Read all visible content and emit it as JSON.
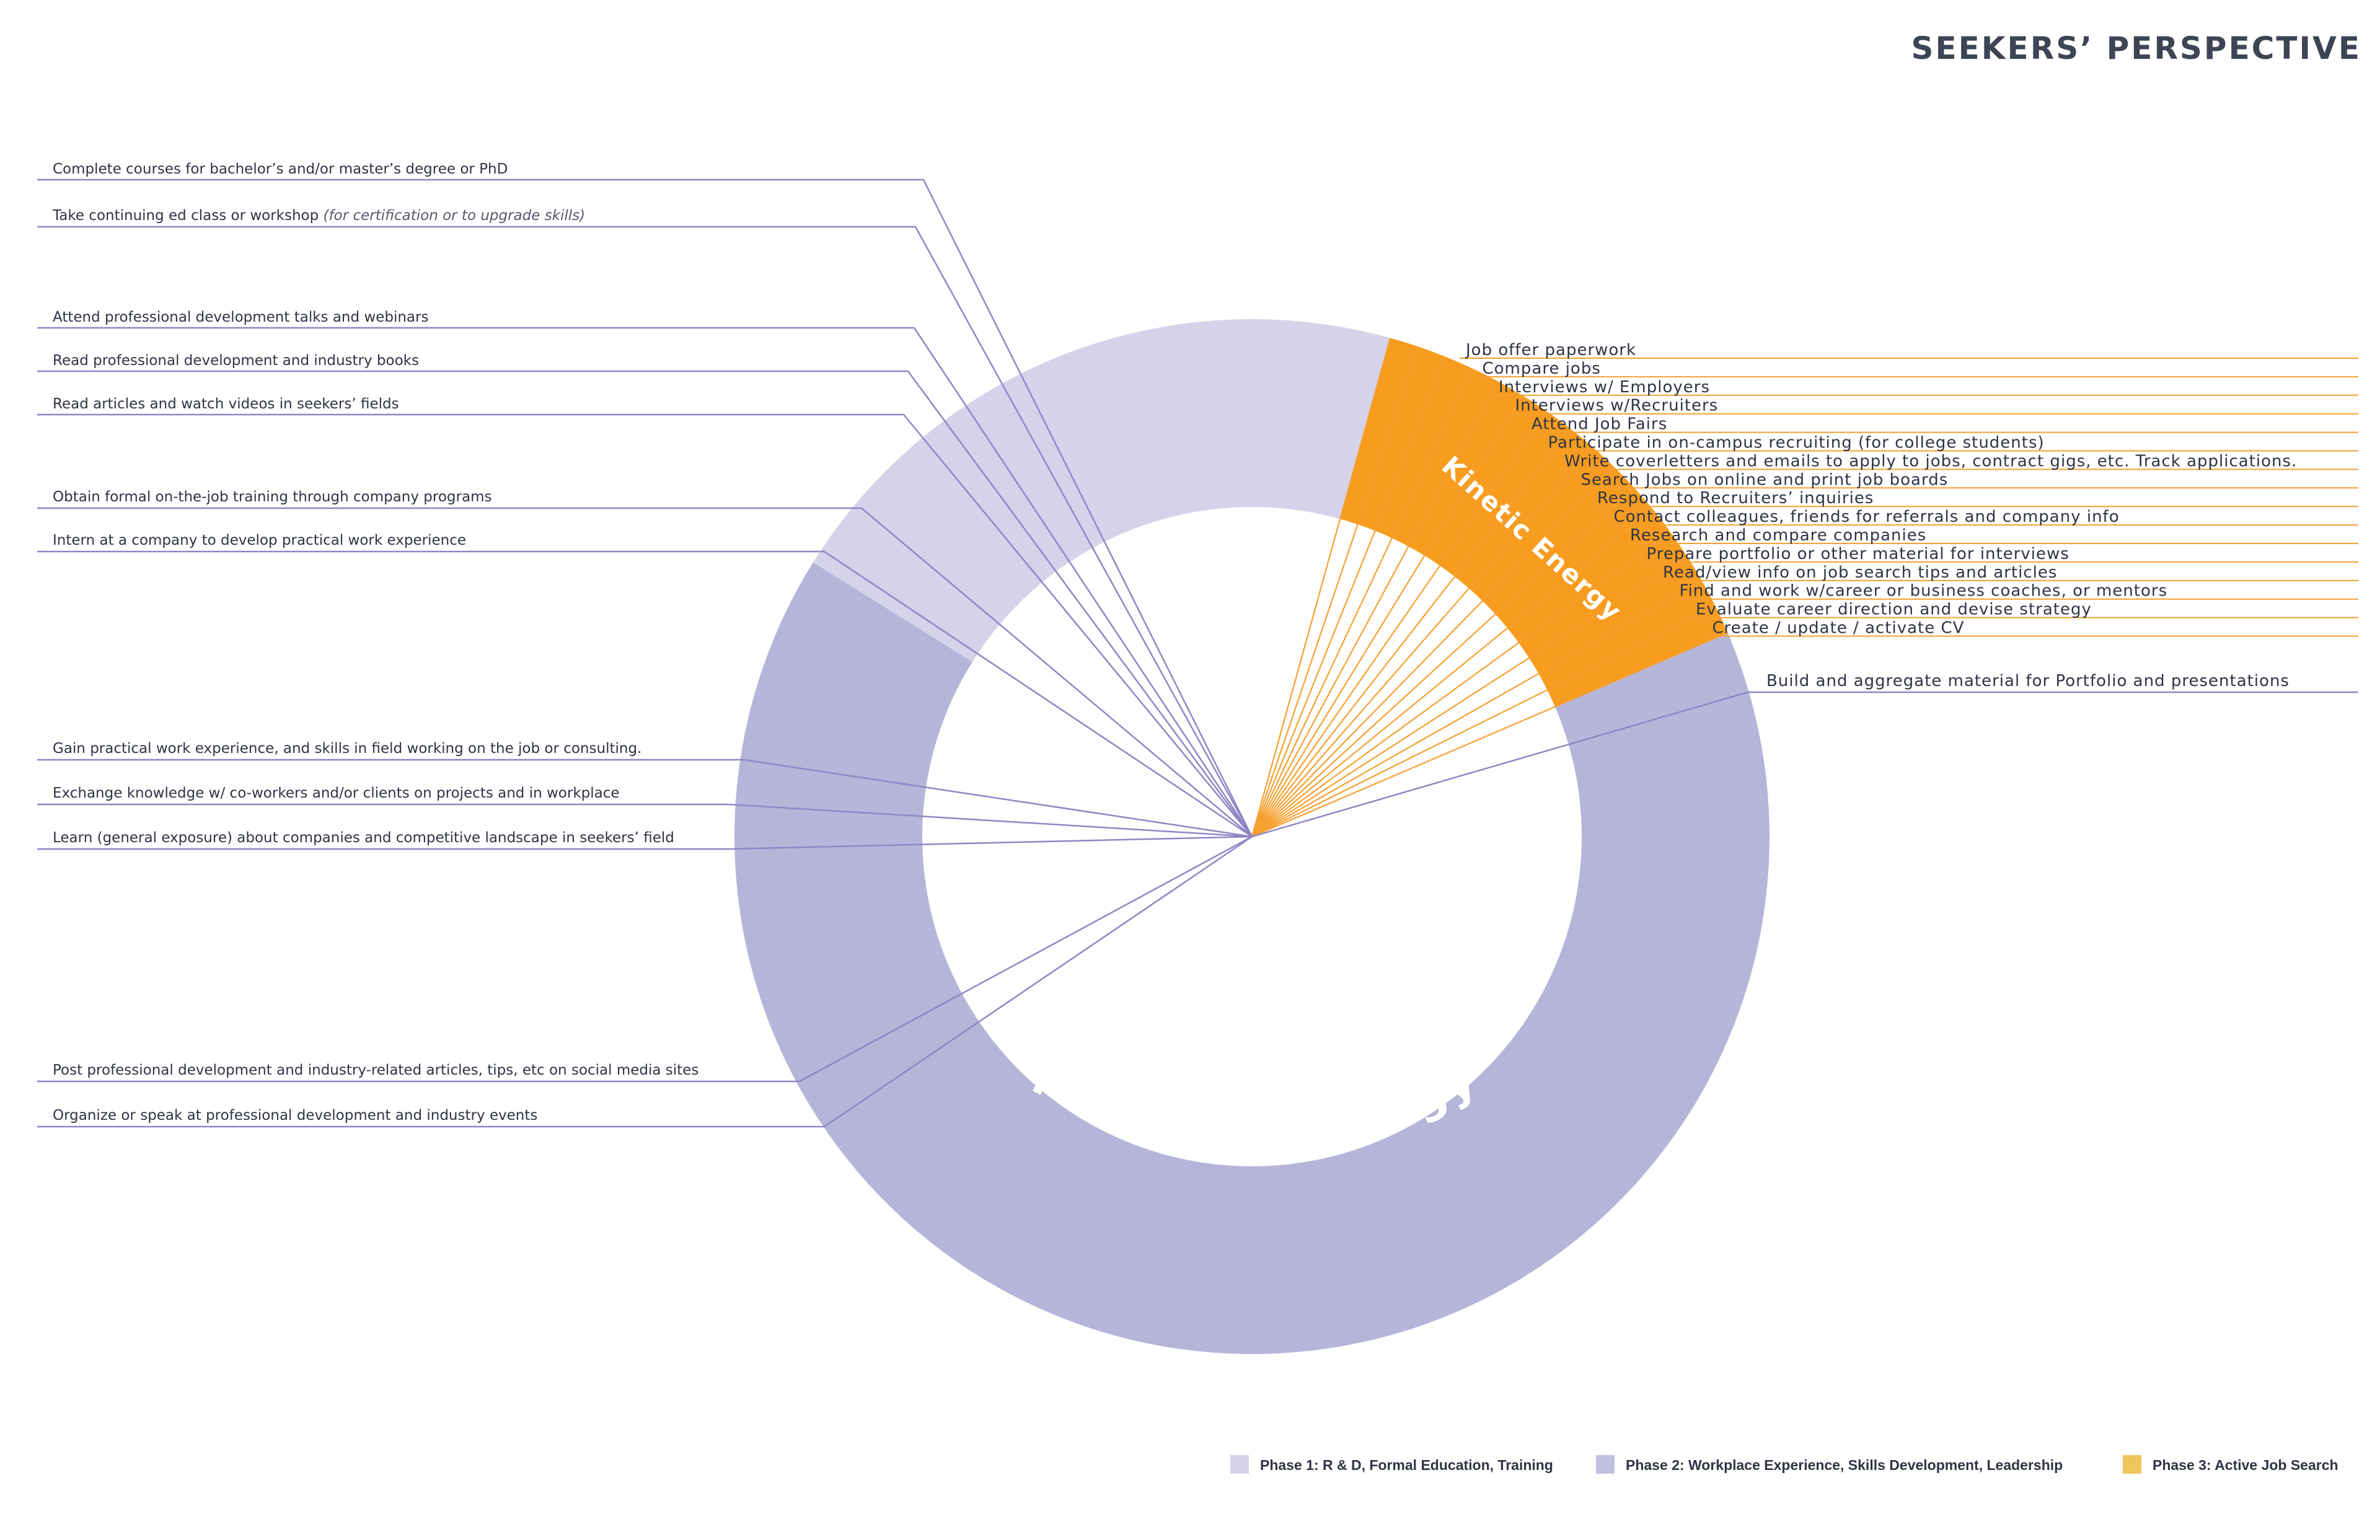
{
  "title": "SEEKERS’ PERSPECTIVE",
  "colors": {
    "phase1": "#d5d3e9",
    "phase2": "#b5b5d9",
    "phase3": "#f79c1e",
    "phase1_leader": "#8f86c4",
    "phase3_leader": "#f5a030",
    "legend_phase3": "#efc65c"
  },
  "ring_labels": {
    "potential": "Potential Energy",
    "kinetic": "Kinetic Energy"
  },
  "left_items": [
    {
      "text": "Complete courses for bachelor’s and/or master’s degree or PhD",
      "note": ""
    },
    {
      "text": "Take continuing ed class or workshop ",
      "note": "(for certification or to upgrade skills)"
    },
    {
      "text": "Attend professional development talks and webinars",
      "note": ""
    },
    {
      "text": "Read professional development and industry books",
      "note": ""
    },
    {
      "text": "Read articles and watch videos in seekers’ fields",
      "note": ""
    },
    {
      "text": "Obtain formal on-the-job training through company programs",
      "note": ""
    },
    {
      "text": "Intern at a company to develop practical work experience",
      "note": ""
    },
    {
      "text": "Gain practical work experience, and skills in field working on the job or consulting.",
      "note": ""
    },
    {
      "text": "Exchange knowledge w/ co-workers and/or clients on projects and in workplace",
      "note": ""
    },
    {
      "text": "Learn (general exposure) about companies and competitive landscape in seekers’ field",
      "note": ""
    },
    {
      "text": "Post professional development and industry-related articles, tips, etc on social media sites",
      "note": ""
    },
    {
      "text": "Organize or speak at professional development and industry events",
      "note": ""
    }
  ],
  "right_items": [
    "Job offer paperwork",
    "Compare jobs",
    "Interviews w/ Employers",
    "Interviews w/Recruiters",
    "Attend Job Fairs",
    "Participate in on-campus recruiting (for college students)",
    "Write coverletters and emails to apply to jobs, contract gigs, etc. Track applications.",
    "Search Jobs on online and print job boards",
    "Respond to Recruiters’ inquiries",
    "Contact colleagues, friends for referrals and company info",
    "Research and compare companies",
    "Prepare portfolio or other material for interviews",
    "Read/view info on job search tips and articles",
    "Find and work w/career or business coaches, or mentors",
    "Evaluate career direction and devise strategy",
    "Create / update / activate CV"
  ],
  "portfolio_item": "Build and aggregate material for Portfolio and presentations",
  "legend": [
    {
      "label": "Phase 1: R & D, Formal Education, Training",
      "color": "#d5d3e9"
    },
    {
      "label": "Phase 2:  Workplace Experience, Skills Development, Leadership",
      "color": "#c2c0e0"
    },
    {
      "label": "Phase 3: Active Job Search",
      "color": "#efc65c"
    }
  ]
}
